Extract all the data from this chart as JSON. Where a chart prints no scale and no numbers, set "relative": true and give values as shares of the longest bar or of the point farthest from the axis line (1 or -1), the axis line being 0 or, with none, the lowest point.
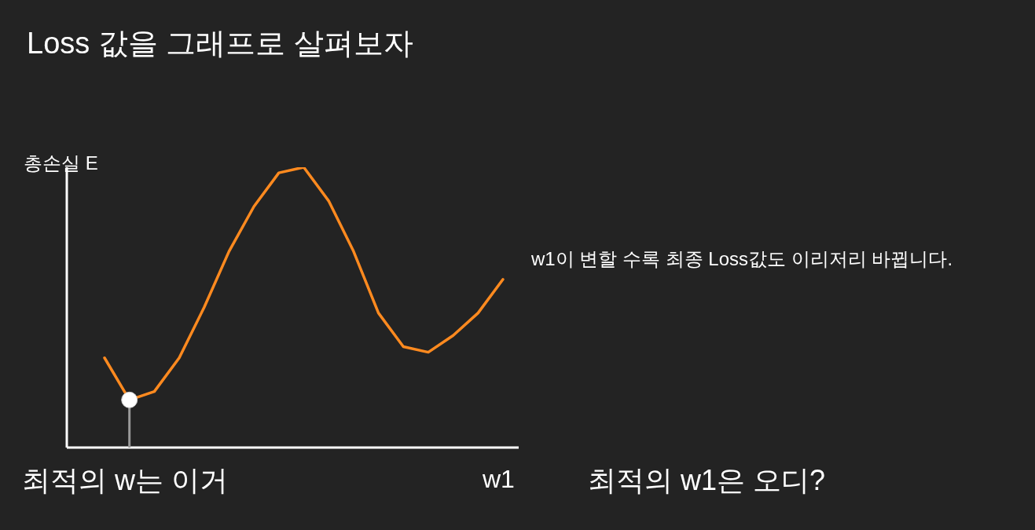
{
  "chart_data": {
    "type": "line",
    "title": "Loss 값을 그래프로 살펴보자",
    "ylabel": "총손실 E",
    "xlabel": "w1",
    "relative": true,
    "categories": [
      null,
      null,
      null,
      null,
      null,
      null,
      null,
      null,
      null,
      null,
      null,
      null,
      null,
      null,
      null,
      null,
      null
    ],
    "series": [
      {
        "color": "#ff8a1f",
        "values": [
          0.32,
          0.17,
          0.2,
          0.32,
          0.5,
          0.7,
          0.86,
          0.98,
          1,
          0.88,
          0.7,
          0.48,
          0.36,
          0.34,
          0.4,
          0.48,
          0.6
        ]
      }
    ],
    "annotations": [
      {
        "text": "최적의 w는 이거",
        "y": 0.17
      },
      "w1이 변할 수록 최종 Loss값도 이리저리 바뀝니다.",
      "최적의 w1은 오디?"
    ]
  }
}
